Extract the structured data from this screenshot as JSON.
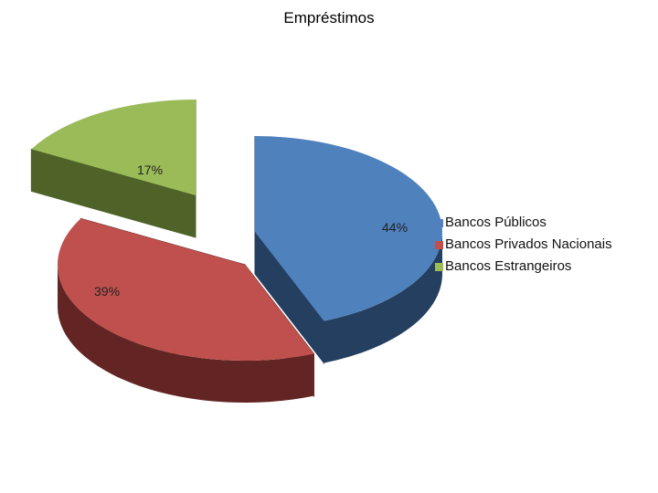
{
  "chart_data": {
    "type": "pie",
    "title": "Empréstimos",
    "categories": [
      "Bancos Públicos",
      "Bancos Privados Nacionais",
      "Bancos Estrangeiros"
    ],
    "values": [
      44,
      39,
      17
    ],
    "data_labels": [
      "44%",
      "39%",
      "17%"
    ],
    "colors": [
      "#4f81bd",
      "#c0504d",
      "#9bbb59"
    ],
    "side_colors": [
      "#243f60",
      "#632523",
      "#4f6228"
    ],
    "exploded": true,
    "three_d": true,
    "legend_position": "right"
  }
}
